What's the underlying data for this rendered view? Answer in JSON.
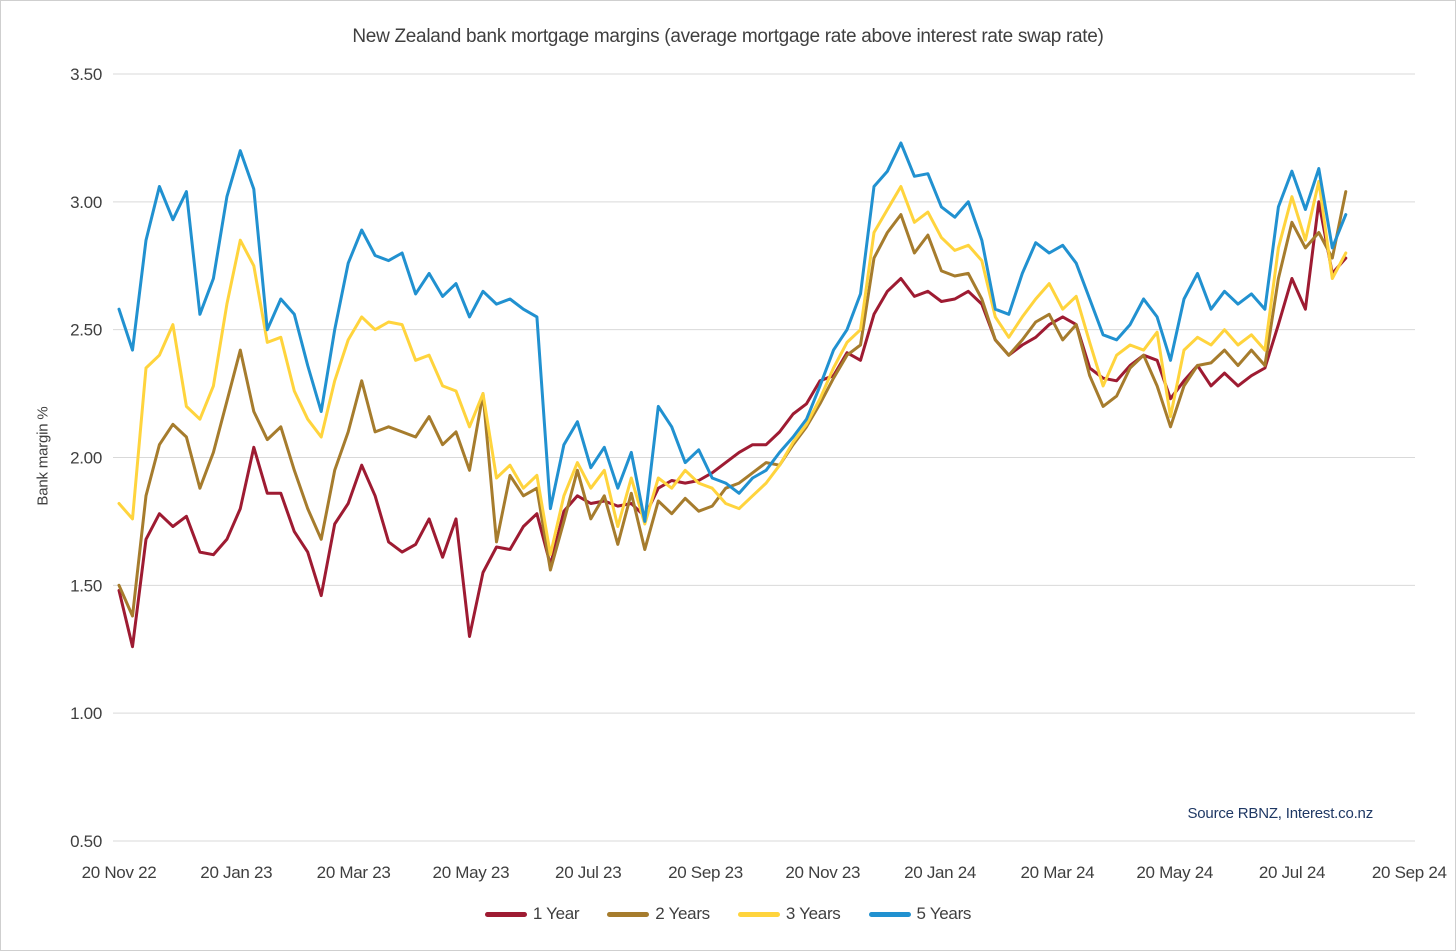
{
  "title": "New Zealand bank mortgage margins (average mortgage rate above interest rate swap rate)",
  "source": "Source RBNZ, Interest.co.nz",
  "source_color": "#1f3864",
  "y_axis": {
    "label": "Bank margin %",
    "tick_labels": [
      "3.50",
      "3.00",
      "2.50",
      "2.00",
      "1.50",
      "1.00",
      "0.50"
    ],
    "tick_values": [
      3.5,
      3.0,
      2.5,
      2.0,
      1.5,
      1.0,
      0.5
    ]
  },
  "x_axis": {
    "tick_labels": [
      "20 Nov 22",
      "20 Jan 23",
      "20 Mar 23",
      "20 May 23",
      "20 Jul 23",
      "20 Sep 23",
      "20 Nov 23",
      "20 Jan 24",
      "20 Mar 24",
      "20 May 24",
      "20 Jul 24",
      "20 Sep 24"
    ]
  },
  "chart_data": {
    "type": "line",
    "title": "New Zealand bank mortgage margins (average mortgage rate above interest rate swap rate)",
    "xlabel": "",
    "ylabel": "Bank margin %",
    "ylim": [
      0.5,
      3.5
    ],
    "grid": "horizontal-only",
    "grid_color": "#d9d9d9",
    "legend_position": "bottom",
    "x_unit": "weekly observations from 20 Nov 22 to 19 Aug 24",
    "x_axis_span_weeks": 95.71,
    "x_tick_labels": [
      "20 Nov 22",
      "20 Jan 23",
      "20 Mar 23",
      "20 May 23",
      "20 Jul 23",
      "20 Sep 23",
      "20 Nov 23",
      "20 Jan 24",
      "20 Mar 24",
      "20 May 24",
      "20 Jul 24",
      "20 Sep 24"
    ],
    "series": [
      {
        "name": "1 Year",
        "color": "#9e1b32",
        "values": [
          1.48,
          1.26,
          1.68,
          1.78,
          1.73,
          1.77,
          1.63,
          1.62,
          1.68,
          1.8,
          2.04,
          1.86,
          1.86,
          1.71,
          1.63,
          1.46,
          1.74,
          1.82,
          1.97,
          1.85,
          1.67,
          1.63,
          1.66,
          1.76,
          1.61,
          1.76,
          1.3,
          1.55,
          1.65,
          1.64,
          1.73,
          1.78,
          1.58,
          1.79,
          1.85,
          1.82,
          1.83,
          1.81,
          1.82,
          1.77,
          1.88,
          1.91,
          1.9,
          1.91,
          1.94,
          1.98,
          2.02,
          2.05,
          2.05,
          2.1,
          2.17,
          2.21,
          2.3,
          2.32,
          2.41,
          2.38,
          2.56,
          2.65,
          2.7,
          2.63,
          2.65,
          2.61,
          2.62,
          2.65,
          2.6,
          2.46,
          2.4,
          2.44,
          2.47,
          2.52,
          2.55,
          2.52,
          2.35,
          2.31,
          2.3,
          2.36,
          2.4,
          2.38,
          2.23,
          2.3,
          2.36,
          2.28,
          2.33,
          2.28,
          2.32,
          2.35,
          2.52,
          2.7,
          2.58,
          3.0,
          2.72,
          2.78
        ]
      },
      {
        "name": "2 Years",
        "color": "#a67c2d",
        "values": [
          1.5,
          1.38,
          1.85,
          2.05,
          2.13,
          2.08,
          1.88,
          2.02,
          2.22,
          2.42,
          2.18,
          2.07,
          2.12,
          1.95,
          1.8,
          1.68,
          1.95,
          2.1,
          2.3,
          2.1,
          2.12,
          2.1,
          2.08,
          2.16,
          2.05,
          2.1,
          1.95,
          2.25,
          1.67,
          1.93,
          1.85,
          1.88,
          1.56,
          1.75,
          1.95,
          1.76,
          1.85,
          1.66,
          1.86,
          1.64,
          1.83,
          1.78,
          1.84,
          1.79,
          1.81,
          1.88,
          1.9,
          1.94,
          1.98,
          1.97,
          2.05,
          2.12,
          2.21,
          2.31,
          2.4,
          2.44,
          2.78,
          2.88,
          2.95,
          2.8,
          2.87,
          2.73,
          2.71,
          2.72,
          2.62,
          2.46,
          2.4,
          2.46,
          2.53,
          2.56,
          2.46,
          2.52,
          2.32,
          2.2,
          2.24,
          2.35,
          2.4,
          2.28,
          2.12,
          2.28,
          2.36,
          2.37,
          2.42,
          2.36,
          2.42,
          2.36,
          2.7,
          2.92,
          2.82,
          2.88,
          2.78,
          3.04
        ]
      },
      {
        "name": "3 Years",
        "color": "#ffd43d",
        "values": [
          1.82,
          1.76,
          2.35,
          2.4,
          2.52,
          2.2,
          2.15,
          2.28,
          2.6,
          2.85,
          2.75,
          2.45,
          2.47,
          2.26,
          2.15,
          2.08,
          2.3,
          2.46,
          2.55,
          2.5,
          2.53,
          2.52,
          2.38,
          2.4,
          2.28,
          2.26,
          2.12,
          2.25,
          1.92,
          1.97,
          1.88,
          1.93,
          1.62,
          1.85,
          1.98,
          1.88,
          1.95,
          1.73,
          1.92,
          1.74,
          1.92,
          1.88,
          1.95,
          1.9,
          1.88,
          1.82,
          1.8,
          1.85,
          1.9,
          1.97,
          2.06,
          2.13,
          2.23,
          2.35,
          2.45,
          2.5,
          2.88,
          2.97,
          3.06,
          2.92,
          2.96,
          2.86,
          2.81,
          2.83,
          2.77,
          2.55,
          2.47,
          2.55,
          2.62,
          2.68,
          2.58,
          2.63,
          2.45,
          2.28,
          2.4,
          2.44,
          2.42,
          2.49,
          2.16,
          2.42,
          2.47,
          2.44,
          2.5,
          2.44,
          2.48,
          2.42,
          2.82,
          3.02,
          2.85,
          3.08,
          2.7,
          2.8
        ]
      },
      {
        "name": "5 Years",
        "color": "#2191d0",
        "values": [
          2.58,
          2.42,
          2.85,
          3.06,
          2.93,
          3.04,
          2.56,
          2.7,
          3.02,
          3.2,
          3.05,
          2.5,
          2.62,
          2.56,
          2.36,
          2.18,
          2.5,
          2.76,
          2.89,
          2.79,
          2.77,
          2.8,
          2.64,
          2.72,
          2.63,
          2.68,
          2.55,
          2.65,
          2.6,
          2.62,
          2.58,
          2.55,
          1.8,
          2.05,
          2.14,
          1.96,
          2.04,
          1.88,
          2.02,
          1.75,
          2.2,
          2.12,
          1.98,
          2.03,
          1.92,
          1.9,
          1.86,
          1.92,
          1.95,
          2.02,
          2.08,
          2.15,
          2.28,
          2.42,
          2.5,
          2.64,
          3.06,
          3.12,
          3.23,
          3.1,
          3.11,
          2.98,
          2.94,
          3.0,
          2.85,
          2.58,
          2.56,
          2.72,
          2.84,
          2.8,
          2.83,
          2.76,
          2.62,
          2.48,
          2.46,
          2.52,
          2.62,
          2.55,
          2.38,
          2.62,
          2.72,
          2.58,
          2.65,
          2.6,
          2.64,
          2.58,
          2.98,
          3.12,
          2.97,
          3.13,
          2.82,
          2.95
        ]
      }
    ]
  },
  "legend": {
    "items": [
      "1 Year",
      "2 Years",
      "3 Years",
      "5 Years"
    ]
  }
}
